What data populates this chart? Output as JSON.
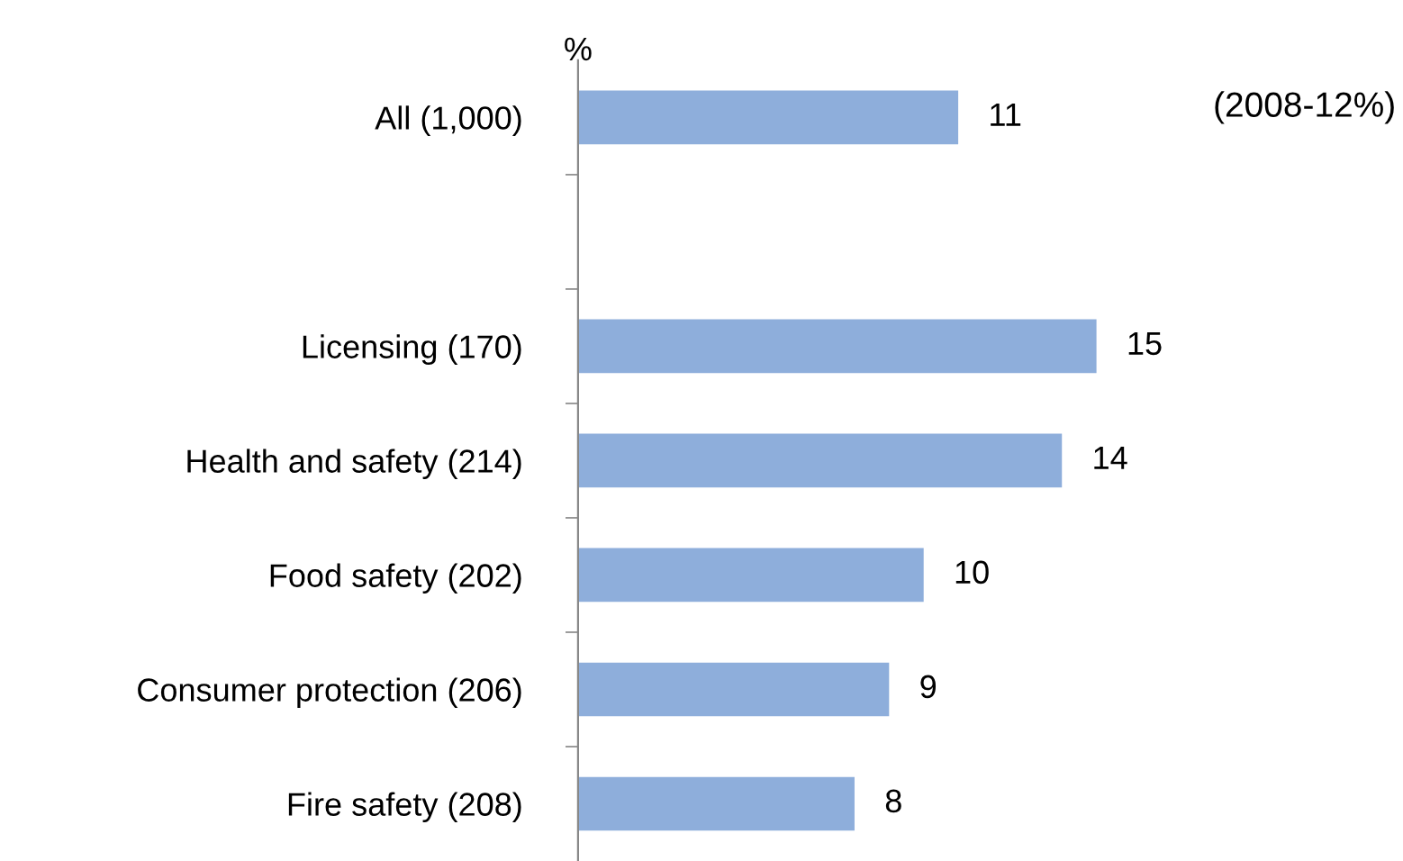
{
  "chart_data": {
    "type": "bar",
    "orientation": "horizontal",
    "xlabel": "%",
    "categories": [
      "All (1,000)",
      null,
      "Licensing (170)",
      "Health and safety (214)",
      "Food safety (202)",
      "Consumer protection (206)",
      "Fire safety (208)"
    ],
    "values": [
      11,
      null,
      15,
      14,
      10,
      9,
      8
    ],
    "color": "#8eaedb",
    "data_labels": true,
    "tick_labels": "y",
    "grid": false,
    "annotations": [
      "(2008-12%)"
    ]
  }
}
